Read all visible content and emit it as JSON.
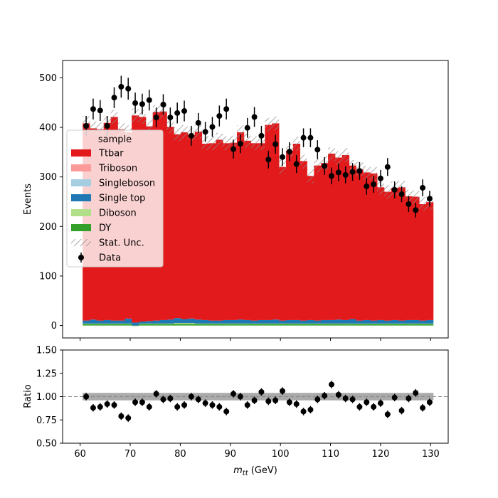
{
  "chart_data": [
    {
      "type": "bar",
      "kind": "stacked-histogram",
      "ylabel": "Events",
      "xlim": [
        56.5,
        133.5
      ],
      "ylim": [
        -25,
        535
      ],
      "yticks": [
        0,
        100,
        200,
        300,
        400,
        500
      ],
      "bin_width": 1.4,
      "x_start": 60.5,
      "legend": {
        "title": "sample",
        "placement": "center-left",
        "entries": [
          "Ttbar",
          "Triboson",
          "Singleboson",
          "Single top",
          "Diboson",
          "DY",
          "Stat. Unc.",
          "Data"
        ]
      },
      "colors": {
        "Ttbar": "#e31a1c",
        "Triboson": "#fb9a99",
        "Singleboson": "#a6cee3",
        "Single top": "#1f78b4",
        "Diboson": "#b2df8a",
        "DY": "#33a02c",
        "Data": "#000000"
      },
      "series": [
        {
          "name": "DY",
          "values": [
            3,
            3,
            3,
            3,
            3,
            3,
            3,
            -1,
            3,
            3,
            3,
            3,
            3,
            3,
            3,
            3,
            3,
            3,
            3,
            3,
            3,
            3,
            3,
            3,
            3,
            3,
            3,
            3,
            3,
            3,
            3,
            3,
            3,
            3,
            3,
            3,
            3,
            3,
            3,
            3,
            3,
            3,
            3,
            3,
            3,
            3,
            3,
            3,
            3,
            3
          ]
        },
        {
          "name": "Diboson",
          "values": [
            1,
            1,
            1,
            1,
            1,
            1,
            1,
            1,
            1,
            1,
            1,
            1,
            1,
            2,
            2,
            2,
            1,
            1,
            1,
            1,
            1,
            1,
            1,
            1,
            1,
            1,
            1,
            1,
            1,
            1,
            1,
            1,
            1,
            1,
            1,
            1,
            1,
            1,
            1,
            1,
            1,
            1,
            1,
            1,
            1,
            1,
            1,
            1,
            1,
            1
          ]
        },
        {
          "name": "Single top",
          "values": [
            6,
            8,
            6,
            7,
            6,
            6,
            10,
            6,
            4,
            5,
            6,
            7,
            8,
            10,
            8,
            9,
            8,
            7,
            6,
            6,
            7,
            7,
            8,
            7,
            6,
            7,
            7,
            8,
            6,
            7,
            7,
            6,
            7,
            6,
            7,
            7,
            8,
            7,
            9,
            6,
            7,
            6,
            7,
            6,
            7,
            6,
            7,
            7,
            6,
            7
          ]
        },
        {
          "name": "Singleboson",
          "values": [
            0,
            0,
            0,
            0,
            0,
            0,
            0,
            0,
            0,
            0,
            0,
            0,
            0,
            0,
            0,
            0,
            0,
            0,
            0,
            0,
            0,
            0,
            0,
            0,
            0,
            0,
            0,
            0,
            0,
            0,
            0,
            0,
            0,
            0,
            0,
            0,
            0,
            0,
            0,
            0,
            0,
            0,
            0,
            0,
            0,
            0,
            0,
            0,
            0,
            0
          ]
        },
        {
          "name": "Triboson",
          "values": [
            0,
            0,
            0,
            0,
            0,
            0,
            0,
            0,
            0,
            0,
            0,
            0,
            0,
            0,
            0,
            0,
            0,
            0,
            0,
            0,
            0,
            0,
            0,
            0,
            0,
            0,
            0,
            0,
            0,
            0,
            0,
            0,
            0,
            0,
            0,
            0,
            0,
            0,
            0,
            0,
            0,
            0,
            0,
            0,
            0,
            0,
            0,
            0,
            0,
            0
          ]
        },
        {
          "name": "Ttbar",
          "values": [
            398,
            386,
            386,
            398,
            411,
            386,
            376,
            418,
            413,
            393,
            421,
            421,
            389,
            371,
            377,
            371,
            379,
            356,
            358,
            365,
            357,
            358,
            378,
            362,
            358,
            357,
            394,
            396,
            310,
            342,
            356,
            322,
            291,
            313,
            317,
            336,
            327,
            333,
            310,
            305,
            298,
            297,
            268,
            260,
            267,
            269,
            250,
            249,
            235,
            238
          ]
        }
      ],
      "totals": [
        408,
        398,
        396,
        409,
        421,
        396,
        390,
        424,
        421,
        402,
        431,
        432,
        402,
        386,
        391,
        385,
        391,
        368,
        368,
        375,
        368,
        369,
        390,
        373,
        368,
        368,
        405,
        408,
        320,
        353,
        367,
        331,
        301,
        323,
        328,
        346,
        338,
        344,
        320,
        316,
        308,
        306,
        278,
        269,
        277,
        278,
        260,
        259,
        245,
        248
      ],
      "stat_unc": [
        14,
        14,
        14,
        14,
        14,
        14,
        14,
        14,
        14,
        14,
        14,
        14,
        14,
        14,
        14,
        14,
        14,
        14,
        14,
        14,
        14,
        14,
        14,
        14,
        14,
        14,
        14,
        14,
        14,
        14,
        14,
        14,
        14,
        14,
        14,
        14,
        14,
        14,
        14,
        14,
        14,
        14,
        14,
        14,
        14,
        14,
        14,
        14,
        14,
        14
      ],
      "data": {
        "name": "Data",
        "x": [
          61.2,
          62.6,
          64.0,
          65.4,
          66.8,
          68.2,
          69.6,
          71.0,
          72.4,
          73.8,
          75.2,
          76.6,
          78.0,
          79.4,
          80.8,
          82.2,
          83.6,
          85.0,
          86.4,
          87.8,
          89.2,
          90.6,
          92.0,
          93.4,
          94.8,
          96.2,
          97.6,
          99.0,
          100.4,
          101.8,
          103.2,
          104.6,
          106.0,
          107.4,
          108.8,
          110.2,
          111.6,
          113.0,
          114.4,
          115.8,
          117.2,
          118.6,
          120.0,
          121.4,
          122.8,
          124.2,
          125.6,
          127.0,
          128.4,
          129.8
        ],
        "y": [
          403,
          437,
          434,
          403,
          460,
          482,
          478,
          449,
          447,
          455,
          420,
          446,
          420,
          429,
          433,
          383,
          409,
          391,
          401,
          423,
          437,
          356,
          367,
          399,
          421,
          383,
          335,
          366,
          340,
          351,
          326,
          379,
          379,
          355,
          322,
          302,
          309,
          304,
          310,
          312,
          281,
          285,
          297,
          320,
          274,
          265,
          245,
          233,
          278,
          256
        ],
        "err": [
          20,
          21,
          21,
          20,
          21,
          22,
          22,
          21,
          21,
          21,
          20,
          21,
          20,
          21,
          21,
          20,
          20,
          20,
          20,
          21,
          21,
          19,
          19,
          20,
          20,
          20,
          18,
          19,
          18,
          19,
          18,
          19,
          19,
          19,
          18,
          17,
          18,
          17,
          18,
          18,
          17,
          17,
          17,
          18,
          17,
          16,
          16,
          15,
          17,
          16
        ]
      }
    },
    {
      "type": "scatter",
      "kind": "ratio",
      "xlabel": "m_tt (GeV)",
      "ylabel": "Ratio",
      "xlim": [
        56.5,
        133.5
      ],
      "ylim": [
        0.5,
        1.5
      ],
      "xticks": [
        60,
        70,
        80,
        90,
        100,
        110,
        120,
        130
      ],
      "yticks": [
        "0.50",
        "0.75",
        "1.00",
        "1.25",
        "1.50"
      ],
      "reference_line": 1.0,
      "band_halfwidth": 0.04,
      "x": [
        61.2,
        62.6,
        64.0,
        65.4,
        66.8,
        68.2,
        69.6,
        71.0,
        72.4,
        73.8,
        75.2,
        76.6,
        78.0,
        79.4,
        80.8,
        82.2,
        83.6,
        85.0,
        86.4,
        87.8,
        89.2,
        90.6,
        92.0,
        93.4,
        94.8,
        96.2,
        97.6,
        99.0,
        100.4,
        101.8,
        103.2,
        104.6,
        106.0,
        107.4,
        108.8,
        110.2,
        111.6,
        113.0,
        114.4,
        115.8,
        117.2,
        118.6,
        120.0,
        121.4,
        122.8,
        124.2,
        125.6,
        127.0,
        128.4,
        129.8
      ],
      "y": [
        1.0,
        0.88,
        0.89,
        0.92,
        0.91,
        0.79,
        0.77,
        0.94,
        0.94,
        0.89,
        1.03,
        0.97,
        0.98,
        0.89,
        0.91,
        1.0,
        0.97,
        0.93,
        0.91,
        0.89,
        0.84,
        1.03,
        1.0,
        0.91,
        0.96,
        1.05,
        0.95,
        0.96,
        1.06,
        0.94,
        0.92,
        0.84,
        0.86,
        0.97,
        1.01,
        1.13,
        1.02,
        0.98,
        0.97,
        0.89,
        0.94,
        0.89,
        0.93,
        0.81,
        0.99,
        0.85,
        0.98,
        1.04,
        0.88,
        0.94
      ],
      "err": [
        0.04,
        0.04,
        0.04,
        0.04,
        0.04,
        0.04,
        0.04,
        0.04,
        0.04,
        0.04,
        0.04,
        0.04,
        0.04,
        0.04,
        0.04,
        0.04,
        0.04,
        0.04,
        0.04,
        0.04,
        0.04,
        0.04,
        0.04,
        0.04,
        0.04,
        0.04,
        0.04,
        0.04,
        0.04,
        0.04,
        0.04,
        0.04,
        0.04,
        0.04,
        0.04,
        0.04,
        0.04,
        0.04,
        0.04,
        0.04,
        0.04,
        0.04,
        0.04,
        0.04,
        0.04,
        0.04,
        0.04,
        0.04,
        0.04,
        0.04
      ]
    }
  ]
}
